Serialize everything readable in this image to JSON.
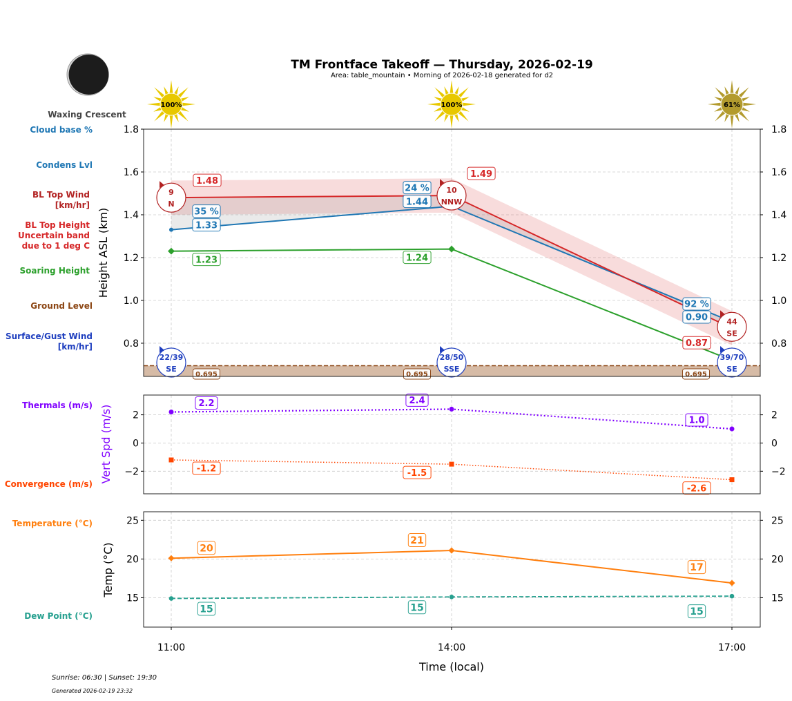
{
  "header": {
    "title": "TM Frontface Takeoff — Thursday, 2026-02-19",
    "subtitle": "Area: table_mountain • Morning of 2026-02-18 generated for d2",
    "moon_phase": "Waxing Crescent",
    "moon_icon": "waxing-crescent-moon-icon"
  },
  "footer": {
    "sun_times": "Sunrise: 06:30 | Sunset: 19:30",
    "generated": "Generated 2026-02-19 23:32"
  },
  "colors": {
    "bl_top": "#d62728",
    "bl_wind": "#b22222",
    "condens": "#1f77b4",
    "soaring": "#2ca02c",
    "ground": "#8b4513",
    "surface_wind": "#1f3fbf",
    "thermals": "#8000ff",
    "convergence": "#ff4500",
    "temperature": "#ff7f0e",
    "dew_point": "#26a08f",
    "sun_full": "#e8c800",
    "sun_partial": "#b39b2e"
  },
  "chart_data": [
    {
      "type": "line",
      "panel": "height",
      "ylabel": "Height ASL (km)",
      "ylim": [
        0.645,
        1.8
      ],
      "yticks": [
        0.8,
        1.0,
        1.2,
        1.4,
        1.6,
        1.8
      ],
      "ytick_labels": [
        "0.8",
        "1.0",
        "1.2",
        "1.4",
        "1.6",
        "1.8"
      ],
      "grid": true,
      "x": [
        "11:00",
        "14:00",
        "17:00"
      ],
      "sunshine_pct": [
        100,
        100,
        61
      ],
      "sunshine_labels": [
        "100%",
        "100%",
        "61%"
      ],
      "left_labels": [
        "Cloud base %",
        "Condens Lvl",
        "BL Top Wind [km/hr]",
        "BL Top Height Uncertain band due to 1 deg C",
        "Soaring Height",
        "Ground Level",
        "Surface/Gust Wind [km/hr]"
      ],
      "series": {
        "bl_top": {
          "values": [
            1.48,
            1.49,
            0.87
          ],
          "labels": [
            "1.48",
            "1.49",
            "0.87"
          ],
          "band": 0.08
        },
        "condens": {
          "values": [
            1.33,
            1.44,
            0.9
          ],
          "labels": [
            "1.33",
            "1.44",
            "0.90"
          ]
        },
        "cloud_base_pct": {
          "values": [
            35,
            24,
            92
          ],
          "labels": [
            "35 %",
            "24 %",
            "92 %"
          ]
        },
        "soaring": {
          "values": [
            1.23,
            1.24,
            0.72
          ],
          "labels": [
            "1.23",
            "1.24",
            ""
          ]
        },
        "ground": {
          "values": [
            0.695,
            0.695,
            0.695
          ],
          "labels": [
            "0.695",
            "0.695",
            "0.695"
          ]
        },
        "bl_wind": {
          "speed": [
            "9",
            "10",
            "44"
          ],
          "dir": [
            "N",
            "NNW",
            "SE"
          ]
        },
        "surface_wind": {
          "speed": [
            "22/39",
            "28/50",
            "39/70"
          ],
          "dir": [
            "SE",
            "SSE",
            "SE"
          ]
        }
      }
    },
    {
      "type": "line",
      "panel": "vertical_speed",
      "ylabel": "Vert Spd (m/s)",
      "ylim": [
        -3.6,
        3.4
      ],
      "yticks": [
        -2,
        0,
        2
      ],
      "ytick_labels": [
        "−2",
        "0",
        "2"
      ],
      "grid": true,
      "left_labels": [
        "Thermals (m/s)",
        "Convergence (m/s)"
      ],
      "series": {
        "thermals": {
          "values": [
            2.2,
            2.4,
            1.0
          ],
          "labels": [
            "2.2",
            "2.4",
            "1.0"
          ]
        },
        "convergence": {
          "values": [
            -1.2,
            -1.5,
            -2.6
          ],
          "labels": [
            "-1.2",
            "-1.5",
            "-2.6"
          ]
        }
      }
    },
    {
      "type": "line",
      "panel": "temperature",
      "ylabel": "Temp (°C)",
      "xlabel": "Time (local)",
      "ylim": [
        11.2,
        26.1
      ],
      "yticks": [
        15,
        20,
        25
      ],
      "ytick_labels": [
        "15",
        "20",
        "25"
      ],
      "grid": true,
      "x_tick_labels": [
        "11:00",
        "14:00",
        "17:00"
      ],
      "left_labels": [
        "Temperature (°C)",
        "Dew Point (°C)"
      ],
      "series": {
        "temperature": {
          "values": [
            20.1,
            21.1,
            16.9
          ],
          "labels": [
            "20",
            "21",
            "17"
          ]
        },
        "dew_point": {
          "values": [
            14.9,
            15.1,
            15.2
          ],
          "labels": [
            "15",
            "15",
            "15"
          ]
        }
      }
    }
  ]
}
